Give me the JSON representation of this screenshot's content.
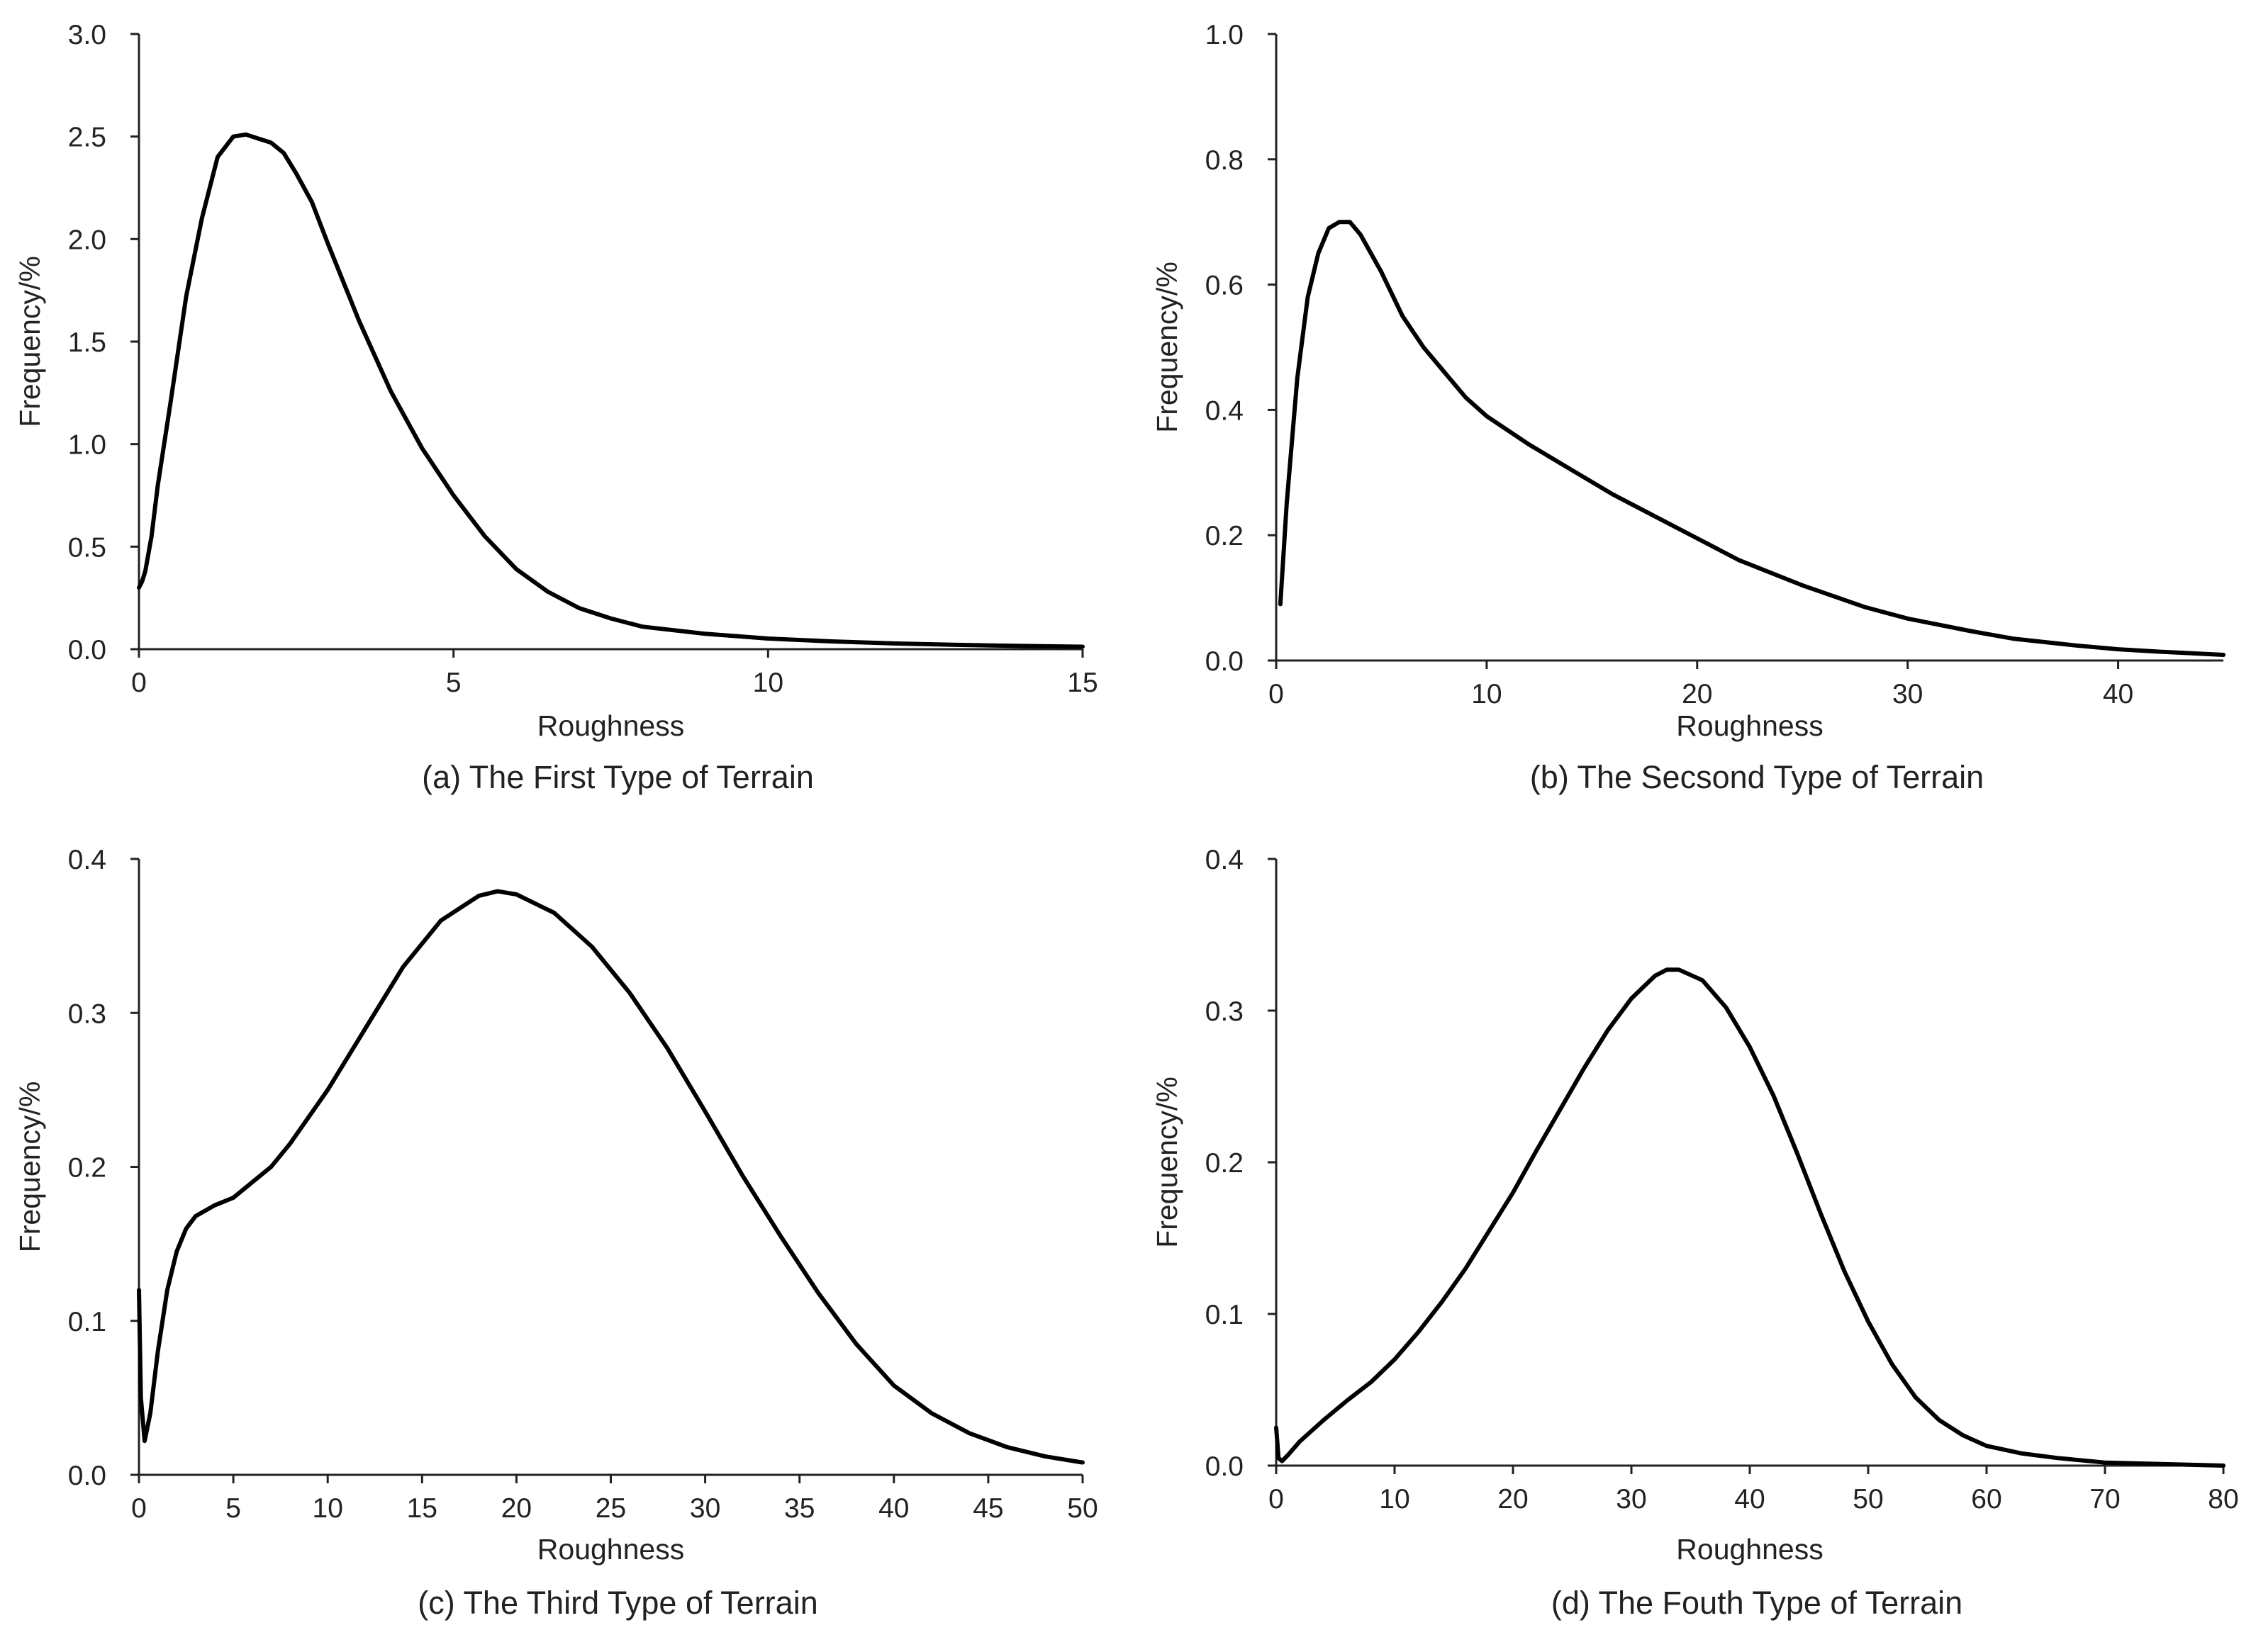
{
  "chart_data": [
    {
      "type": "line",
      "title": "(a) The First Type of Terrain",
      "xlabel": "Roughness",
      "ylabel": "Frequency/%",
      "xlim": [
        0,
        15
      ],
      "ylim": [
        0,
        3.0
      ],
      "x_ticks": [
        "0",
        "5",
        "10",
        "15"
      ],
      "y_ticks": [
        "0.0",
        "0.5",
        "1.0",
        "1.5",
        "2.0",
        "2.5",
        "3.0"
      ],
      "series": [
        {
          "name": "First Type",
          "x": [
            0,
            0.05,
            0.1,
            0.2,
            0.3,
            0.5,
            0.75,
            1.0,
            1.25,
            1.5,
            1.7,
            1.9,
            2.1,
            2.3,
            2.5,
            2.75,
            3.0,
            3.5,
            4.0,
            4.5,
            5.0,
            5.5,
            6.0,
            6.5,
            7.0,
            7.5,
            8.0,
            9.0,
            10.0,
            11.0,
            12.0,
            13.0,
            14.0,
            15.0
          ],
          "y": [
            0.3,
            0.33,
            0.38,
            0.55,
            0.8,
            1.2,
            1.72,
            2.1,
            2.4,
            2.5,
            2.51,
            2.49,
            2.47,
            2.42,
            2.32,
            2.18,
            1.98,
            1.6,
            1.26,
            0.98,
            0.75,
            0.55,
            0.39,
            0.28,
            0.2,
            0.15,
            0.11,
            0.075,
            0.052,
            0.038,
            0.028,
            0.021,
            0.016,
            0.012
          ]
        }
      ]
    },
    {
      "type": "line",
      "title": "(b) The Secsond Type of Terrain",
      "xlabel": "Roughness",
      "ylabel": "Frequency/%",
      "xlim": [
        0,
        45
      ],
      "ylim": [
        0,
        1.0
      ],
      "x_ticks": [
        "0",
        "10",
        "20",
        "30",
        "40"
      ],
      "x_tick_values": [
        0,
        10,
        20,
        30,
        40
      ],
      "y_ticks": [
        "0.0",
        "0.2",
        "0.4",
        "0.6",
        "0.8",
        "1.0"
      ],
      "series": [
        {
          "name": "Second Type",
          "x": [
            0.2,
            0.5,
            1.0,
            1.5,
            2.0,
            2.5,
            3.0,
            3.5,
            4.0,
            5.0,
            6.0,
            7.0,
            8.0,
            9.0,
            10.0,
            12.0,
            14.0,
            16.0,
            18.0,
            20.0,
            22.0,
            25.0,
            28.0,
            30.0,
            33.0,
            35.0,
            38.0,
            40.0,
            42.0,
            45.0
          ],
          "y": [
            0.09,
            0.25,
            0.45,
            0.58,
            0.65,
            0.69,
            0.7,
            0.7,
            0.68,
            0.62,
            0.55,
            0.5,
            0.46,
            0.42,
            0.39,
            0.345,
            0.305,
            0.265,
            0.23,
            0.195,
            0.16,
            0.12,
            0.085,
            0.067,
            0.047,
            0.035,
            0.024,
            0.018,
            0.014,
            0.009
          ]
        }
      ]
    },
    {
      "type": "line",
      "title": "(c) The Third Type of Terrain",
      "xlabel": "Roughness",
      "ylabel": "Frequency/%",
      "xlim": [
        0,
        50
      ],
      "ylim": [
        0,
        0.4
      ],
      "x_ticks": [
        "0",
        "5",
        "10",
        "15",
        "20",
        "25",
        "30",
        "35",
        "40",
        "45",
        "50"
      ],
      "y_ticks": [
        "0.0",
        "0.1",
        "0.2",
        "0.3",
        "0.4"
      ],
      "series": [
        {
          "name": "Third Type",
          "x": [
            0,
            0.1,
            0.3,
            0.6,
            1.0,
            1.5,
            2.0,
            2.5,
            3.0,
            4.0,
            5.0,
            6.0,
            7.0,
            8.0,
            10.0,
            12.0,
            14.0,
            16.0,
            18.0,
            19.0,
            20.0,
            22.0,
            24.0,
            26.0,
            28.0,
            30.0,
            32.0,
            34.0,
            36.0,
            38.0,
            40.0,
            42.0,
            44.0,
            46.0,
            48.0,
            50.0
          ],
          "y": [
            0.12,
            0.05,
            0.022,
            0.04,
            0.08,
            0.12,
            0.145,
            0.16,
            0.168,
            0.175,
            0.18,
            0.19,
            0.2,
            0.215,
            0.25,
            0.29,
            0.33,
            0.36,
            0.376,
            0.379,
            0.377,
            0.365,
            0.343,
            0.313,
            0.277,
            0.236,
            0.194,
            0.155,
            0.118,
            0.085,
            0.058,
            0.04,
            0.027,
            0.018,
            0.012,
            0.008
          ]
        }
      ]
    },
    {
      "type": "line",
      "title": "(d) The Fouth Type of Terrain",
      "xlabel": "Roughness",
      "ylabel": "Frequency/%",
      "xlim": [
        0,
        80
      ],
      "ylim": [
        0,
        0.4
      ],
      "x_ticks": [
        "0",
        "10",
        "20",
        "30",
        "40",
        "50",
        "60",
        "70",
        "80"
      ],
      "y_ticks": [
        "0.0",
        "0.1",
        "0.2",
        "0.3",
        "0.4"
      ],
      "series": [
        {
          "name": "Fourth Type",
          "x": [
            0,
            0.2,
            0.5,
            1,
            2,
            4,
            6,
            8,
            10,
            12,
            14,
            16,
            18,
            20,
            22,
            24,
            26,
            28,
            30,
            32,
            33,
            34,
            36,
            38,
            40,
            42,
            44,
            46,
            48,
            50,
            52,
            54,
            56,
            58,
            60,
            63,
            66,
            70,
            75,
            80
          ],
          "y": [
            0.025,
            0.005,
            0.003,
            0.007,
            0.016,
            0.03,
            0.043,
            0.055,
            0.07,
            0.088,
            0.108,
            0.13,
            0.155,
            0.18,
            0.208,
            0.235,
            0.262,
            0.287,
            0.308,
            0.323,
            0.327,
            0.327,
            0.32,
            0.302,
            0.276,
            0.244,
            0.206,
            0.166,
            0.128,
            0.095,
            0.067,
            0.045,
            0.03,
            0.02,
            0.013,
            0.008,
            0.005,
            0.002,
            0.001,
            0
          ]
        }
      ]
    }
  ]
}
